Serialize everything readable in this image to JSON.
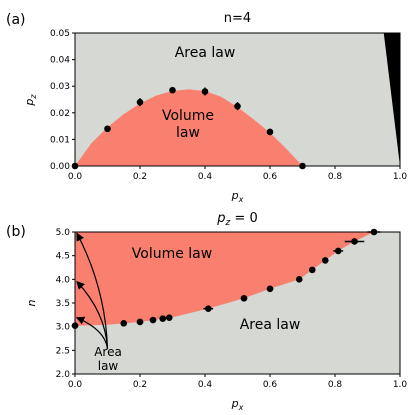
{
  "chart_data": [
    {
      "panel_label": "(a)",
      "type": "area",
      "title": "n=4",
      "xlabel": "p",
      "xlabel_sub": "x",
      "ylabel": "p",
      "ylabel_sub": "z",
      "xlim": [
        0.0,
        1.0
      ],
      "ylim": [
        0.0,
        0.05
      ],
      "xticks": [
        "0.0",
        "0.2",
        "0.4",
        "0.6",
        "0.8",
        "1.0"
      ],
      "yticks": [
        "0.00",
        "0.01",
        "0.02",
        "0.03",
        "0.04",
        "0.05"
      ],
      "region_labels": {
        "area": "Area law",
        "volume_line1": "Volume",
        "volume_line2": "law"
      },
      "points": [
        {
          "x": 0.0,
          "y": 0.0,
          "yerr": 0.0005
        },
        {
          "x": 0.1,
          "y": 0.014,
          "yerr": 0.001
        },
        {
          "x": 0.2,
          "y": 0.024,
          "yerr": 0.0015
        },
        {
          "x": 0.3,
          "y": 0.0285,
          "yerr": 0.001
        },
        {
          "x": 0.4,
          "y": 0.028,
          "yerr": 0.0015
        },
        {
          "x": 0.5,
          "y": 0.0225,
          "yerr": 0.0015
        },
        {
          "x": 0.6,
          "y": 0.0128,
          "yerr": 0.0012
        },
        {
          "x": 0.7,
          "y": 0.0,
          "yerr": 0.0005
        }
      ],
      "boundary": [
        [
          0.0,
          0.0
        ],
        [
          0.05,
          0.0085
        ],
        [
          0.1,
          0.0145
        ],
        [
          0.15,
          0.0195
        ],
        [
          0.2,
          0.0235
        ],
        [
          0.25,
          0.0265
        ],
        [
          0.3,
          0.0282
        ],
        [
          0.35,
          0.0288
        ],
        [
          0.4,
          0.0282
        ],
        [
          0.45,
          0.026
        ],
        [
          0.5,
          0.0222
        ],
        [
          0.55,
          0.0175
        ],
        [
          0.6,
          0.0125
        ],
        [
          0.65,
          0.0065
        ],
        [
          0.7,
          0.0
        ]
      ],
      "black_region": [
        [
          0.95,
          0.05
        ],
        [
          1.0,
          0.05
        ],
        [
          1.0,
          0.0
        ]
      ],
      "colors": {
        "area": "#d5d8d3",
        "volume": "#f9806f",
        "black": "#000000"
      }
    },
    {
      "panel_label": "(b)",
      "type": "area",
      "title": "p",
      "title_sub": "z",
      "title_suffix": " = 0",
      "xlabel": "p",
      "xlabel_sub": "x",
      "ylabel": "n",
      "xlim": [
        0.0,
        1.0
      ],
      "ylim": [
        2.0,
        5.0
      ],
      "xticks": [
        "0.0",
        "0.2",
        "0.4",
        "0.6",
        "0.8",
        "1.0"
      ],
      "yticks": [
        "2.0",
        "2.5",
        "3.0",
        "3.5",
        "4.0",
        "4.5",
        "5.0"
      ],
      "region_labels": {
        "volume": "Volume law",
        "area": "Area law",
        "area_small_line1": "Area",
        "area_small_line2": "law"
      },
      "points": [
        {
          "x": 0.0,
          "y": 3.02,
          "xerr": 0.01
        },
        {
          "x": 0.15,
          "y": 3.07,
          "xerr": 0.01
        },
        {
          "x": 0.2,
          "y": 3.1,
          "xerr": 0.01
        },
        {
          "x": 0.24,
          "y": 3.14,
          "xerr": 0.01
        },
        {
          "x": 0.27,
          "y": 3.17,
          "xerr": 0.01
        },
        {
          "x": 0.29,
          "y": 3.19,
          "xerr": 0.01
        },
        {
          "x": 0.41,
          "y": 3.38,
          "xerr": 0.015
        },
        {
          "x": 0.52,
          "y": 3.6,
          "xerr": 0.01
        },
        {
          "x": 0.6,
          "y": 3.8,
          "xerr": 0.01
        },
        {
          "x": 0.69,
          "y": 4.0,
          "xerr": 0.01
        },
        {
          "x": 0.73,
          "y": 4.2,
          "xerr": 0.01
        },
        {
          "x": 0.77,
          "y": 4.4,
          "xerr": 0.01
        },
        {
          "x": 0.81,
          "y": 4.6,
          "xerr": 0.015
        },
        {
          "x": 0.86,
          "y": 4.8,
          "xerr": 0.03
        },
        {
          "x": 0.92,
          "y": 5.0,
          "xerr": 0.02
        }
      ],
      "boundary": [
        [
          0.0,
          3.02
        ],
        [
          0.1,
          3.04
        ],
        [
          0.2,
          3.1
        ],
        [
          0.3,
          3.2
        ],
        [
          0.41,
          3.38
        ],
        [
          0.52,
          3.6
        ],
        [
          0.6,
          3.8
        ],
        [
          0.69,
          4.0
        ],
        [
          0.73,
          4.2
        ],
        [
          0.77,
          4.4
        ],
        [
          0.81,
          4.6
        ],
        [
          0.86,
          4.8
        ],
        [
          0.92,
          5.0
        ]
      ],
      "arrow_tips": [
        [
          0.0,
          4.97
        ],
        [
          0.0,
          3.95
        ],
        [
          0.0,
          3.19
        ]
      ],
      "arrow_origin": [
        0.1,
        3.08
      ],
      "colors": {
        "area": "#d5d8d3",
        "volume": "#f9806f"
      }
    }
  ]
}
